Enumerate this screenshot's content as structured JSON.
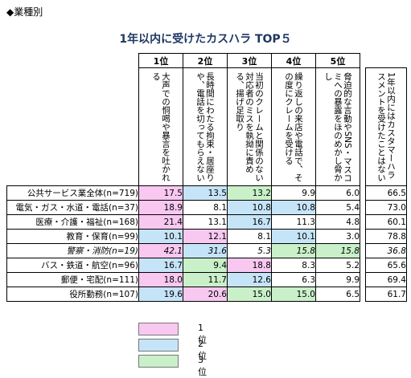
{
  "section_label": "◆業種別",
  "chart_data": {
    "type": "table",
    "title": "1年以内に受けたカスハラ TOP５",
    "ranks": [
      "1位",
      "2位",
      "3位",
      "4位",
      "5位"
    ],
    "columns": [
      "大声での恫喝や暴言を吐かれる",
      "長時間にわたる拘束・居座りや、電話を切ってもらえない",
      "当初のクレームと関係のない対応者のミスを執拗に責める、揚げ足取り",
      "繰り返しの来店や電話で、その度にクレームを受ける",
      "脅迫的な言動やSNS・マスコミへの暴露をほのめかし脅かし",
      "1年以内にはカスタマーハラスメントを受けたことはない"
    ],
    "rows": [
      {
        "label": "公共サービス業全体(n=719)",
        "values": [
          17.5,
          13.5,
          13.2,
          9.9,
          6.0,
          66.5
        ],
        "ranks": [
          1,
          2,
          3,
          0,
          0
        ],
        "italic": false
      },
      {
        "label": "電気・ガス・水道・電話(n=37)",
        "values": [
          18.9,
          8.1,
          10.8,
          10.8,
          5.4,
          73.0
        ],
        "ranks": [
          1,
          0,
          2,
          2,
          0
        ],
        "italic": false
      },
      {
        "label": "医療・介護・福祉(n=168)",
        "values": [
          21.4,
          13.1,
          16.7,
          11.3,
          4.8,
          60.1
        ],
        "ranks": [
          1,
          0,
          2,
          0,
          0
        ],
        "italic": false
      },
      {
        "label": "教育・保育(n=99)",
        "values": [
          10.1,
          12.1,
          8.1,
          10.1,
          3.0,
          78.8
        ],
        "ranks": [
          2,
          1,
          0,
          2,
          0
        ],
        "italic": false
      },
      {
        "label": "警察・消防(n=19)",
        "values": [
          42.1,
          31.6,
          5.3,
          15.8,
          15.8,
          36.8
        ],
        "ranks": [
          1,
          2,
          0,
          3,
          3
        ],
        "italic": true
      },
      {
        "label": "バス・鉄道・航空(n=96)",
        "values": [
          16.7,
          9.4,
          18.8,
          8.3,
          5.2,
          65.6
        ],
        "ranks": [
          2,
          3,
          1,
          0,
          0
        ],
        "italic": false
      },
      {
        "label": "郵便・宅配(n=111)",
        "values": [
          18.0,
          11.7,
          12.6,
          6.3,
          9.9,
          69.4
        ],
        "ranks": [
          1,
          3,
          2,
          0,
          0
        ],
        "italic": false
      },
      {
        "label": "役所勤務(n=107)",
        "values": [
          19.6,
          20.6,
          15.0,
          15.0,
          6.5,
          61.7
        ],
        "ranks": [
          2,
          1,
          3,
          3,
          0
        ],
        "italic": false
      }
    ],
    "legend": [
      {
        "label": "1位",
        "color": "#f8c8f0"
      },
      {
        "label": "2位",
        "color": "#c6e4f8"
      },
      {
        "label": "3位",
        "color": "#c9f0c9"
      }
    ]
  }
}
